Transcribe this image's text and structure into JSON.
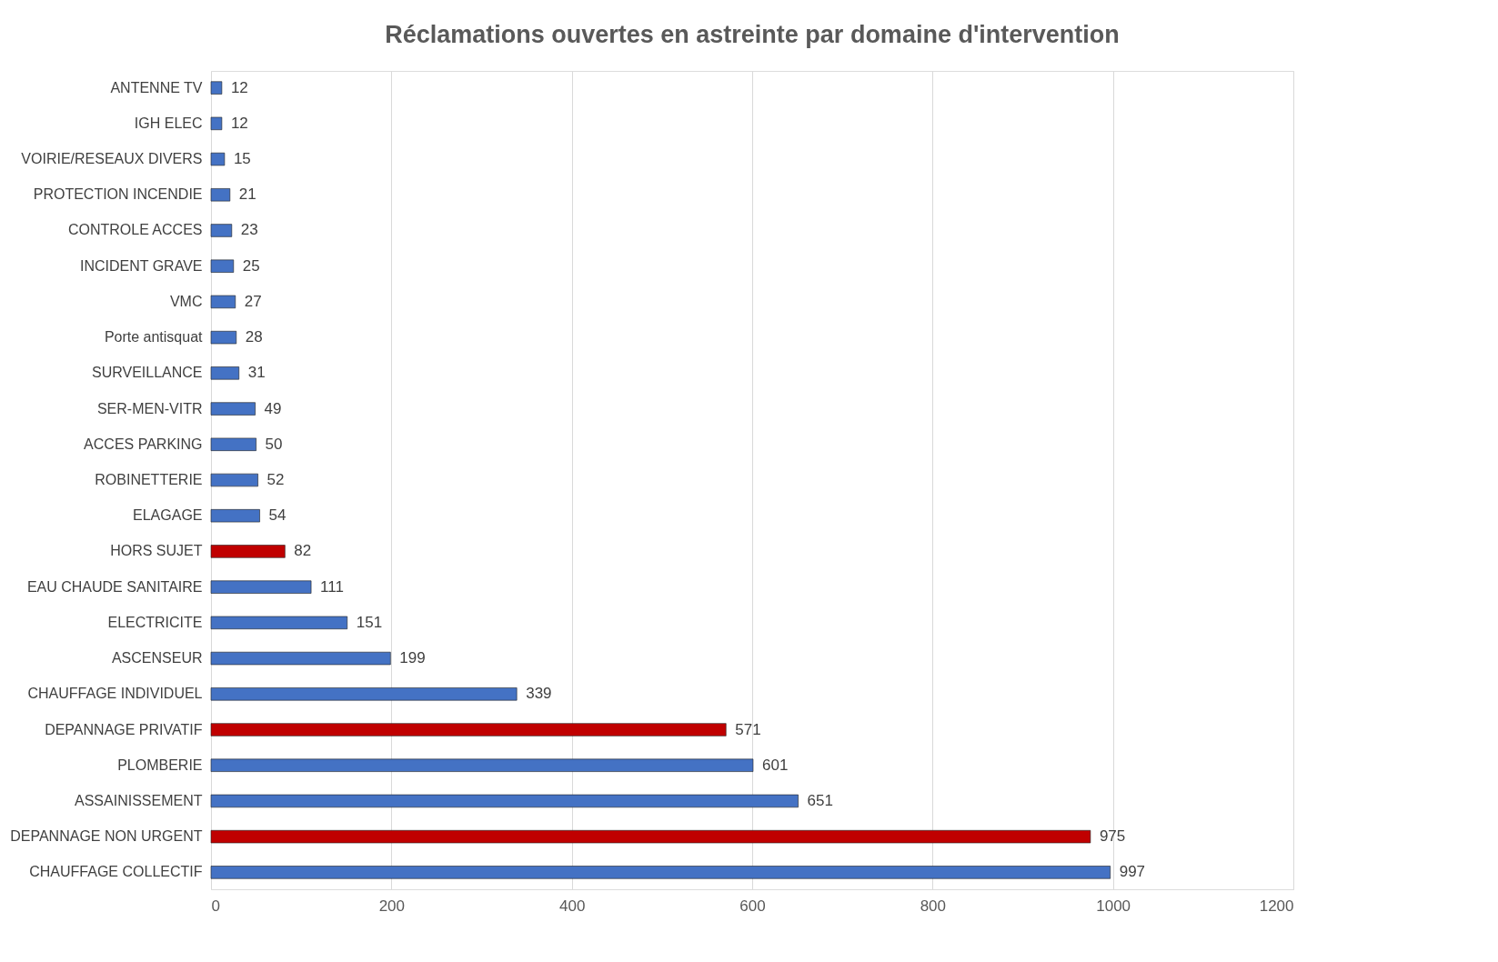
{
  "chart_data": {
    "type": "bar",
    "orientation": "horizontal",
    "title": "Réclamations ouvertes en astreinte par domaine d'intervention",
    "categories": [
      "ANTENNE TV",
      "IGH ELEC",
      "VOIRIE/RESEAUX DIVERS",
      "PROTECTION INCENDIE",
      "CONTROLE ACCES",
      "INCIDENT GRAVE",
      "VMC",
      "Porte antisquat",
      "SURVEILLANCE",
      "SER-MEN-VITR",
      "ACCES PARKING",
      "ROBINETTERIE",
      "ELAGAGE",
      "HORS SUJET",
      "EAU CHAUDE SANITAIRE",
      "ELECTRICITE",
      "ASCENSEUR",
      "CHAUFFAGE INDIVIDUEL",
      "DEPANNAGE PRIVATIF",
      "PLOMBERIE",
      "ASSAINISSEMENT",
      "DEPANNAGE NON URGENT",
      "CHAUFFAGE COLLECTIF"
    ],
    "values": [
      12,
      12,
      15,
      21,
      23,
      25,
      27,
      28,
      31,
      49,
      50,
      52,
      54,
      82,
      111,
      151,
      199,
      339,
      571,
      601,
      651,
      975,
      997
    ],
    "colors": [
      "#4472c4",
      "#4472c4",
      "#4472c4",
      "#4472c4",
      "#4472c4",
      "#4472c4",
      "#4472c4",
      "#4472c4",
      "#4472c4",
      "#4472c4",
      "#4472c4",
      "#4472c4",
      "#4472c4",
      "#c00000",
      "#4472c4",
      "#4472c4",
      "#4472c4",
      "#4472c4",
      "#c00000",
      "#4472c4",
      "#4472c4",
      "#c00000",
      "#4472c4"
    ],
    "xlim": [
      0,
      1200
    ],
    "xticks": [
      0,
      200,
      400,
      600,
      800,
      1000,
      1200
    ],
    "grid": "x",
    "data_labels": true
  }
}
